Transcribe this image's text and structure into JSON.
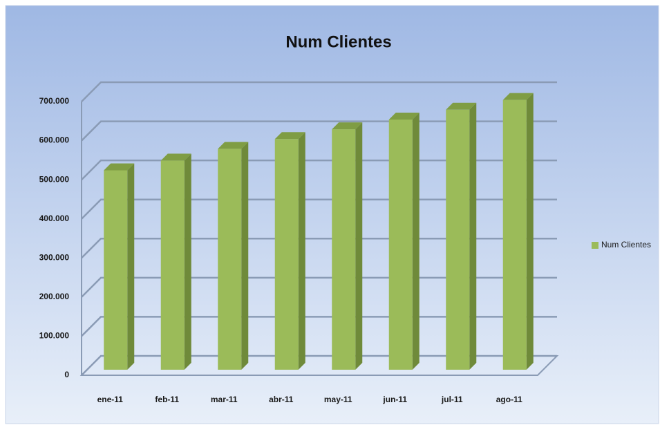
{
  "chart_data": {
    "type": "bar3d",
    "title": "Num Clientes",
    "categories": [
      "ene-11",
      "feb-11",
      "mar-11",
      "abr-11",
      "may-11",
      "jun-11",
      "jul-11",
      "ago-11"
    ],
    "series": [
      {
        "name": "Num Clientes",
        "color": "#9bbb59",
        "values": [
          510000,
          535000,
          565000,
          590000,
          615000,
          640000,
          665000,
          690000
        ]
      }
    ],
    "ylim": [
      0,
      700000
    ],
    "yticks": [
      0,
      {
        "value": 100000,
        "label": "100.000"
      },
      {
        "value": 200000,
        "label": "200.000"
      },
      {
        "value": 300000,
        "label": "300.000"
      },
      {
        "value": 400000,
        "label": "400.000"
      },
      {
        "value": 500000,
        "label": "500.000"
      },
      {
        "value": 600000,
        "label": "600.000"
      },
      {
        "value": 700000,
        "label": "700.000"
      }
    ],
    "grid": true,
    "legend": "right"
  }
}
